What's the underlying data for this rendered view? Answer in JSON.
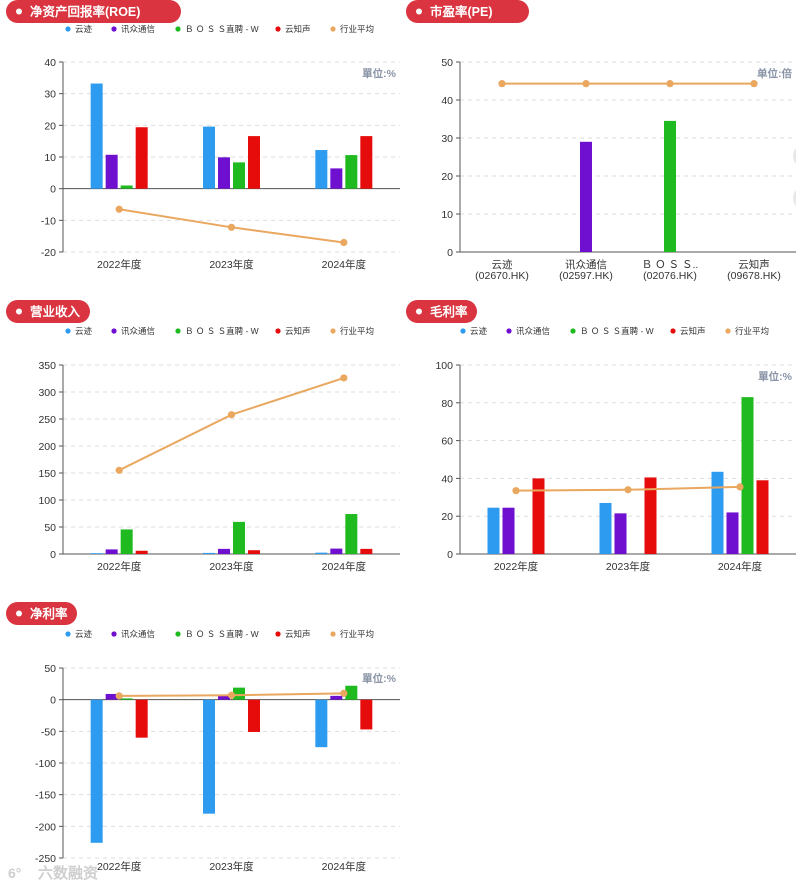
{
  "colors": {
    "title_pill": "#d9343f",
    "yunji": "#2d9bf0",
    "xunzhong": "#6f0fd0",
    "boss": "#1fba1f",
    "yunzhisheng": "#e60c0c",
    "industry_avg": "#e9a75f",
    "axis": "#555555",
    "grid": "#dddddd",
    "unit_text": "#8a94a6"
  },
  "legend": {
    "yunji": "云迹",
    "xunzhong": "讯众通信",
    "boss": "Ｂ Ｏ Ｓ Ｓ直聘 - W",
    "yunzhisheng": "云知声",
    "industry_avg": "行业平均"
  },
  "watermark": "六数融资",
  "chart_data": [
    {
      "id": "roe",
      "type": "bar",
      "title": "净资产回报率(ROE)",
      "unit": "單位:%",
      "categories": [
        "2022年度",
        "2023年度",
        "2024年度"
      ],
      "ylim": [
        -20,
        40
      ],
      "yticks": [
        -20,
        -10,
        0,
        10,
        20,
        30,
        40
      ],
      "grid": true,
      "legend_position": "top",
      "series": [
        {
          "name": "云迹",
          "key": "yunji",
          "values": [
            33.2,
            19.6,
            12.2
          ]
        },
        {
          "name": "讯众通信",
          "key": "xunzhong",
          "values": [
            10.7,
            9.9,
            6.4
          ]
        },
        {
          "name": "Ｂ Ｏ Ｓ Ｓ直聘 - W",
          "key": "boss",
          "values": [
            1.0,
            8.3,
            10.6
          ]
        },
        {
          "name": "云知声",
          "key": "yunzhisheng",
          "values": [
            19.4,
            16.6,
            16.6
          ]
        }
      ],
      "line": {
        "name": "行业平均",
        "key": "industry_avg",
        "values": [
          -6.5,
          -12.2,
          -17.0
        ]
      }
    },
    {
      "id": "pe",
      "type": "bar",
      "title": "市盈率(PE)",
      "unit": "单位:倍",
      "categories": [
        "云迹\n(02670.HK)",
        "讯众通信\n(02597.HK)",
        "Ｂ Ｏ Ｓ Ｓ..\n(02076.HK)",
        "云知声\n(09678.HK)"
      ],
      "ylim": [
        0,
        50
      ],
      "yticks": [
        0,
        10,
        20,
        30,
        40,
        50
      ],
      "grid": true,
      "bars": [
        {
          "category_index": 1,
          "key": "xunzhong",
          "value": 29.0
        },
        {
          "category_index": 2,
          "key": "boss",
          "value": 34.5
        }
      ],
      "line": {
        "name": "行业平均",
        "key": "industry_avg",
        "values": [
          44.3,
          44.3,
          44.3,
          44.3
        ]
      }
    },
    {
      "id": "revenue",
      "type": "bar",
      "title": "营业收入",
      "categories": [
        "2022年度",
        "2023年度",
        "2024年度"
      ],
      "ylim": [
        0,
        350
      ],
      "yticks": [
        0,
        50,
        100,
        150,
        200,
        250,
        300,
        350
      ],
      "grid": true,
      "legend_position": "top",
      "series": [
        {
          "name": "云迹",
          "key": "yunji",
          "values": [
            1.5,
            2.0,
            2.5
          ]
        },
        {
          "name": "讯众通信",
          "key": "xunzhong",
          "values": [
            8.5,
            9.5,
            10.0
          ]
        },
        {
          "name": "Ｂ Ｏ Ｓ Ｓ直聘 - W",
          "key": "boss",
          "values": [
            45.5,
            59.5,
            74.0
          ]
        },
        {
          "name": "云知声",
          "key": "yunzhisheng",
          "values": [
            6.0,
            7.0,
            9.5
          ]
        }
      ],
      "line": {
        "name": "行业平均",
        "key": "industry_avg",
        "values": [
          155,
          258,
          326
        ]
      }
    },
    {
      "id": "gross_margin",
      "type": "bar",
      "title": "毛利率",
      "unit": "單位:%",
      "categories": [
        "2022年度",
        "2023年度",
        "2024年度"
      ],
      "ylim": [
        0,
        100
      ],
      "yticks": [
        0,
        20,
        40,
        60,
        80,
        100
      ],
      "grid": true,
      "legend_position": "top",
      "series": [
        {
          "name": "云迹",
          "key": "yunji",
          "values": [
            24.5,
            27.0,
            43.5
          ]
        },
        {
          "name": "讯众通信",
          "key": "xunzhong",
          "values": [
            24.5,
            21.5,
            22.0
          ]
        },
        {
          "name": "Ｂ Ｏ Ｓ Ｓ直聘 - W",
          "key": "boss",
          "values": [
            0,
            0,
            83.0
          ]
        },
        {
          "name": "云知声",
          "key": "yunzhisheng",
          "values": [
            40.0,
            40.5,
            39.0
          ]
        }
      ],
      "line": {
        "name": "行业平均",
        "key": "industry_avg",
        "values": [
          33.5,
          34.0,
          35.5
        ]
      }
    },
    {
      "id": "net_margin",
      "type": "bar",
      "title": "净利率",
      "unit": "單位:%",
      "categories": [
        "2022年度",
        "2023年度",
        "2024年度"
      ],
      "ylim": [
        -250,
        50
      ],
      "yticks": [
        -250,
        -200,
        -150,
        -100,
        -50,
        0,
        50
      ],
      "grid": true,
      "legend_position": "top",
      "series": [
        {
          "name": "云迹",
          "key": "yunji",
          "values": [
            -226,
            -180,
            -75
          ]
        },
        {
          "name": "讯众通信",
          "key": "xunzhong",
          "values": [
            9,
            7,
            6
          ]
        },
        {
          "name": "Ｂ Ｏ Ｓ Ｓ直聘 - W",
          "key": "boss",
          "values": [
            2,
            19,
            22
          ]
        },
        {
          "name": "云知声",
          "key": "yunzhisheng",
          "values": [
            -60,
            -51,
            -47
          ]
        }
      ],
      "line": {
        "name": "行业平均",
        "key": "industry_avg",
        "values": [
          6,
          7,
          10
        ]
      }
    }
  ]
}
